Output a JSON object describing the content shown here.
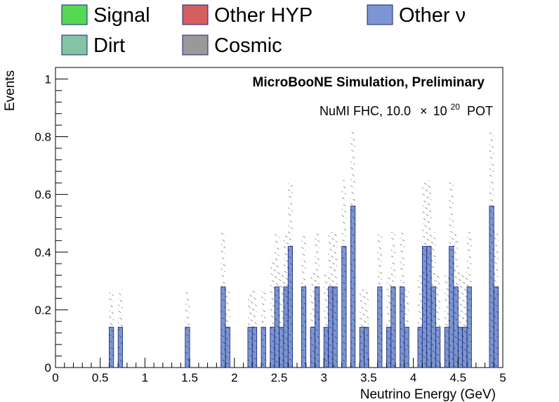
{
  "chart_data": {
    "type": "bar",
    "subtype": "stacked-histogram",
    "title": "MicroBooNE Simulation, Preliminary",
    "subtitle_prefix": "NuMI FHC, 10.0",
    "subtitle_times": "×",
    "subtitle_base": "10",
    "subtitle_exponent": "20",
    "subtitle_suffix": "POT",
    "xlabel": "Neutrino Energy (GeV)",
    "ylabel": "Events",
    "xlim": [
      0,
      5
    ],
    "ylim": [
      0,
      1.04
    ],
    "xticks": [
      0,
      0.5,
      1,
      1.5,
      2,
      2.5,
      3,
      3.5,
      4,
      4.5,
      5
    ],
    "xtick_labels": [
      "0",
      "0.5",
      "1",
      "1.5",
      "2",
      "2.5",
      "3",
      "3.5",
      "4",
      "4.5",
      "5"
    ],
    "yticks": [
      0,
      0.2,
      0.4,
      0.6,
      0.8,
      1
    ],
    "ytick_labels": [
      "0",
      "0.2",
      "0.4",
      "0.6",
      "0.8",
      "1"
    ],
    "bin_width": 0.05,
    "bin_edges_start": 0,
    "legend": [
      {
        "name": "Signal",
        "color": "#55d955"
      },
      {
        "name": "Other HYP",
        "color": "#d55e5e"
      },
      {
        "name": "Other ν",
        "color": "#7b96d2"
      },
      {
        "name": "Dirt",
        "color": "#84c3a3"
      },
      {
        "name": "Cosmic",
        "color": "#999999"
      }
    ],
    "series": [
      {
        "name": "Other ν",
        "color": "#7b96d2",
        "values": [
          0,
          0,
          0,
          0,
          0,
          0,
          0,
          0,
          0,
          0,
          0,
          0,
          0.14,
          0,
          0.14,
          0,
          0,
          0,
          0,
          0,
          0,
          0,
          0,
          0,
          0,
          0,
          0,
          0,
          0,
          0.14,
          0,
          0,
          0,
          0,
          0,
          0,
          0,
          0.28,
          0.14,
          0,
          0,
          0,
          0,
          0.14,
          0.14,
          0,
          0.14,
          0,
          0.14,
          0.28,
          0.14,
          0.28,
          0.42,
          0,
          0,
          0.28,
          0,
          0.14,
          0.28,
          0,
          0.14,
          0.28,
          0.28,
          0,
          0.42,
          0,
          0.56,
          0,
          0.14,
          0.14,
          0,
          0,
          0.28,
          0,
          0.14,
          0.28,
          0,
          0.28,
          0.14,
          0,
          0,
          0.14,
          0.42,
          0.42,
          0.28,
          0.14,
          0,
          0.14,
          0.42,
          0.28,
          0.14,
          0.14,
          0.28,
          0,
          0,
          0,
          0,
          0.56,
          0.28,
          0
        ]
      }
    ],
    "uncertainty": {
      "style": "hatched",
      "values": [
        0,
        0,
        0,
        0,
        0,
        0,
        0,
        0,
        0,
        0,
        0,
        0,
        0.27,
        0,
        0.27,
        0,
        0,
        0,
        0,
        0,
        0,
        0,
        0,
        0,
        0,
        0,
        0,
        0,
        0,
        0.27,
        0,
        0,
        0,
        0,
        0,
        0,
        0,
        0.47,
        0.27,
        0,
        0,
        0,
        0,
        0.27,
        0.27,
        0,
        0.27,
        0,
        0.37,
        0.47,
        0.33,
        0.47,
        0.65,
        0,
        0,
        0.47,
        0,
        0.33,
        0.47,
        0,
        0.33,
        0.47,
        0.47,
        0,
        0.65,
        0,
        0.82,
        0,
        0.27,
        0.27,
        0,
        0,
        0.47,
        0,
        0.33,
        0.47,
        0,
        0.47,
        0.27,
        0,
        0,
        0.33,
        0.65,
        0.65,
        0.47,
        0.33,
        0,
        0.33,
        0.65,
        0.47,
        0.33,
        0.33,
        0.47,
        0,
        0,
        0,
        0,
        0.82,
        0.47,
        0
      ]
    }
  }
}
